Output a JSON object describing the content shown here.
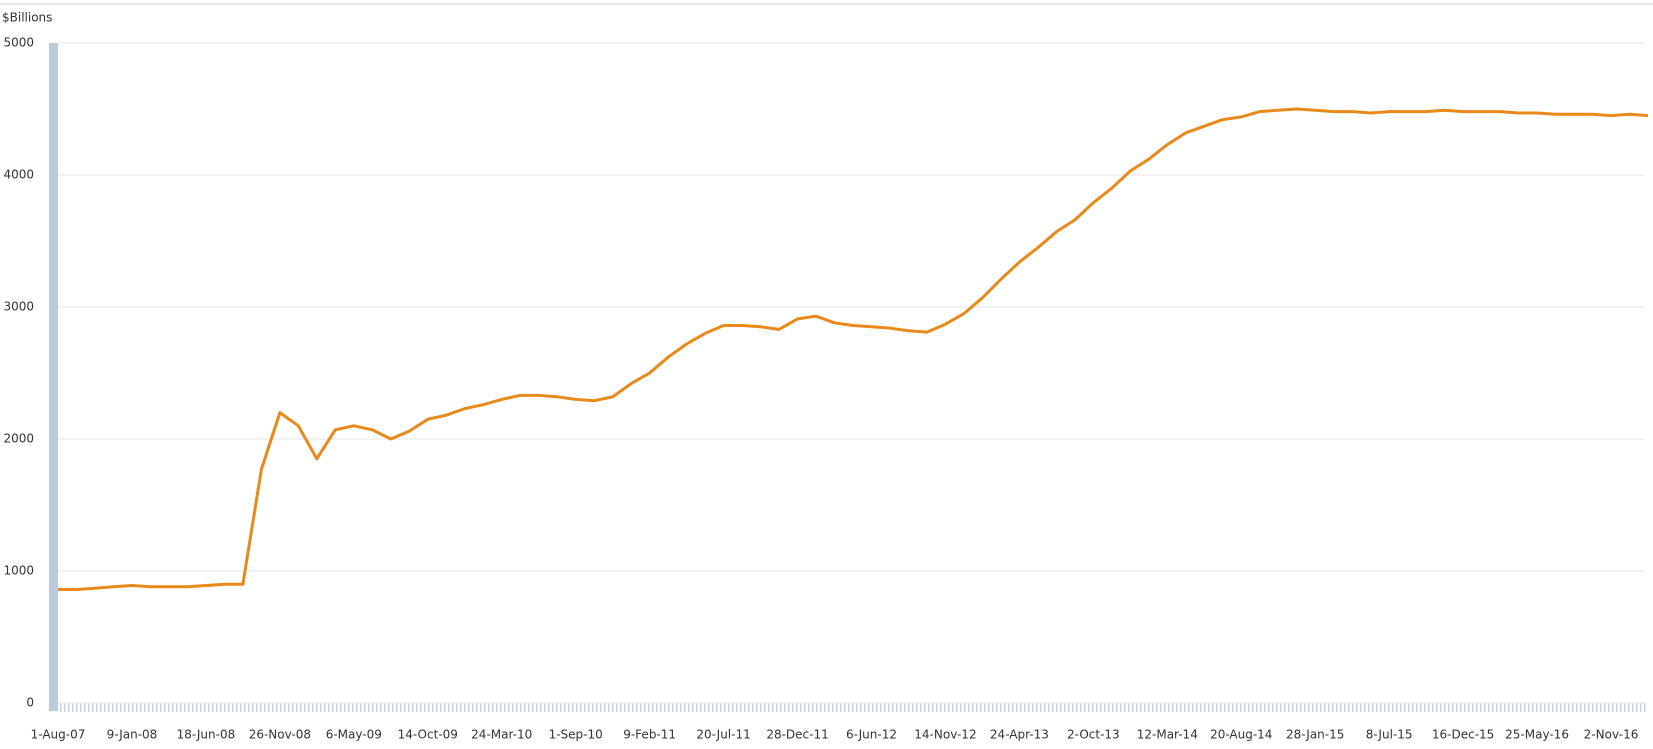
{
  "chart_data": {
    "type": "line",
    "y_label": "$Billions",
    "categories": [
      "1-Aug-07",
      null,
      null,
      null,
      "9-Jan-08",
      null,
      null,
      null,
      "18-Jun-08",
      null,
      null,
      null,
      "26-Nov-08",
      null,
      null,
      null,
      "6-May-09",
      null,
      null,
      null,
      "14-Oct-09",
      null,
      null,
      null,
      "24-Mar-10",
      null,
      null,
      null,
      "1-Sep-10",
      null,
      null,
      null,
      "9-Feb-11",
      null,
      null,
      null,
      "20-Jul-11",
      null,
      null,
      null,
      "28-Dec-11",
      null,
      null,
      null,
      "6-Jun-12",
      null,
      null,
      null,
      "14-Nov-12",
      null,
      null,
      null,
      "24-Apr-13",
      null,
      null,
      null,
      "2-Oct-13",
      null,
      null,
      null,
      "12-Mar-14",
      null,
      null,
      null,
      "20-Aug-14",
      null,
      null,
      null,
      "28-Jan-15",
      null,
      null,
      null,
      "8-Jul-15",
      null,
      null,
      null,
      "16-Dec-15",
      null,
      null,
      null,
      "25-May-16",
      null,
      null,
      null,
      "2-Nov-16",
      null,
      null
    ],
    "values": [
      860,
      860,
      870,
      880,
      890,
      880,
      880,
      880,
      890,
      900,
      900,
      1770,
      2200,
      2100,
      1850,
      2070,
      2100,
      2070,
      2000,
      2060,
      2150,
      2180,
      2230,
      2260,
      2300,
      2330,
      2330,
      2320,
      2300,
      2290,
      2320,
      2420,
      2500,
      2620,
      2720,
      2800,
      2860,
      2860,
      2850,
      2830,
      2910,
      2930,
      2880,
      2860,
      2850,
      2840,
      2820,
      2810,
      2870,
      2950,
      3070,
      3210,
      3340,
      3450,
      3570,
      3660,
      3790,
      3900,
      4030,
      4120,
      4230,
      4320,
      4370,
      4420,
      4440,
      4480,
      4490,
      4500,
      4490,
      4480,
      4480,
      4470,
      4480,
      4480,
      4480,
      4490,
      4480,
      4480,
      4480,
      4470,
      4470,
      4460,
      4460,
      4460,
      4450,
      4460,
      4450
    ],
    "color": "#e8891a",
    "ylim": [
      0,
      5000
    ],
    "yticks": [
      0,
      1000,
      2000,
      3000,
      4000,
      5000
    ],
    "grid": true
  }
}
